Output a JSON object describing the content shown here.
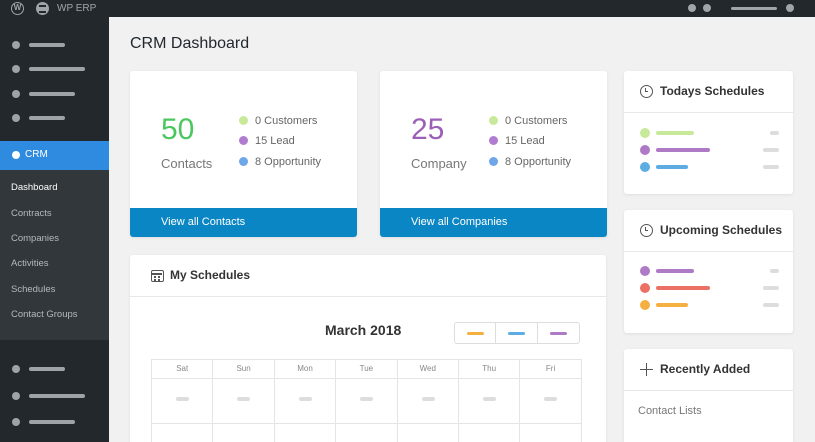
{
  "adminbar": {
    "title": "WP ERP",
    "wp_icon": "wordpress-icon",
    "erp_icon": "wperp-logo-icon"
  },
  "sidebar": {
    "crm_label": "CRM",
    "submenu": [
      "Dashboard",
      "Contracts",
      "Companies",
      "Activities",
      "Schedules",
      "Contact Groups"
    ]
  },
  "page": {
    "title": "CRM Dashboard"
  },
  "contacts_card": {
    "count": "50",
    "label": "Contacts",
    "legend": [
      "0 Customers",
      "15 Lead",
      "8 Opportunity"
    ],
    "button": "View all Contacts"
  },
  "companies_card": {
    "count": "25",
    "label": "Company",
    "legend": [
      "0 Customers",
      "15 Lead",
      "8 Opportunity"
    ],
    "button": "View all Companies"
  },
  "colors": {
    "contacts_number": "#4cc760",
    "companies_number": "#9c5fb8",
    "customers_dot": "#c8e89a",
    "lead_dot": "#b07ccf",
    "opportunity_dot": "#6ea6ea",
    "orange": "#f5b041",
    "red": "#ec7063",
    "blue": "#5dade2",
    "purple": "#af7ac5",
    "accent": "#0a86c4",
    "crm_active": "#2f8be0"
  },
  "todays_schedules": {
    "title": "Todays Schedules",
    "icon": "clock-icon"
  },
  "upcoming_schedules": {
    "title": "Upcoming Schedules",
    "icon": "clock-icon"
  },
  "recently_added": {
    "title": "Recently Added",
    "icon": "plus-icon",
    "items": [
      "Contact Lists"
    ]
  },
  "my_schedules": {
    "title": "My Schedules",
    "icon": "calendar-icon",
    "month": "March 2018",
    "days": [
      "Sat",
      "Sun",
      "Mon",
      "Tue",
      "Wed",
      "Thu",
      "Fri"
    ]
  }
}
